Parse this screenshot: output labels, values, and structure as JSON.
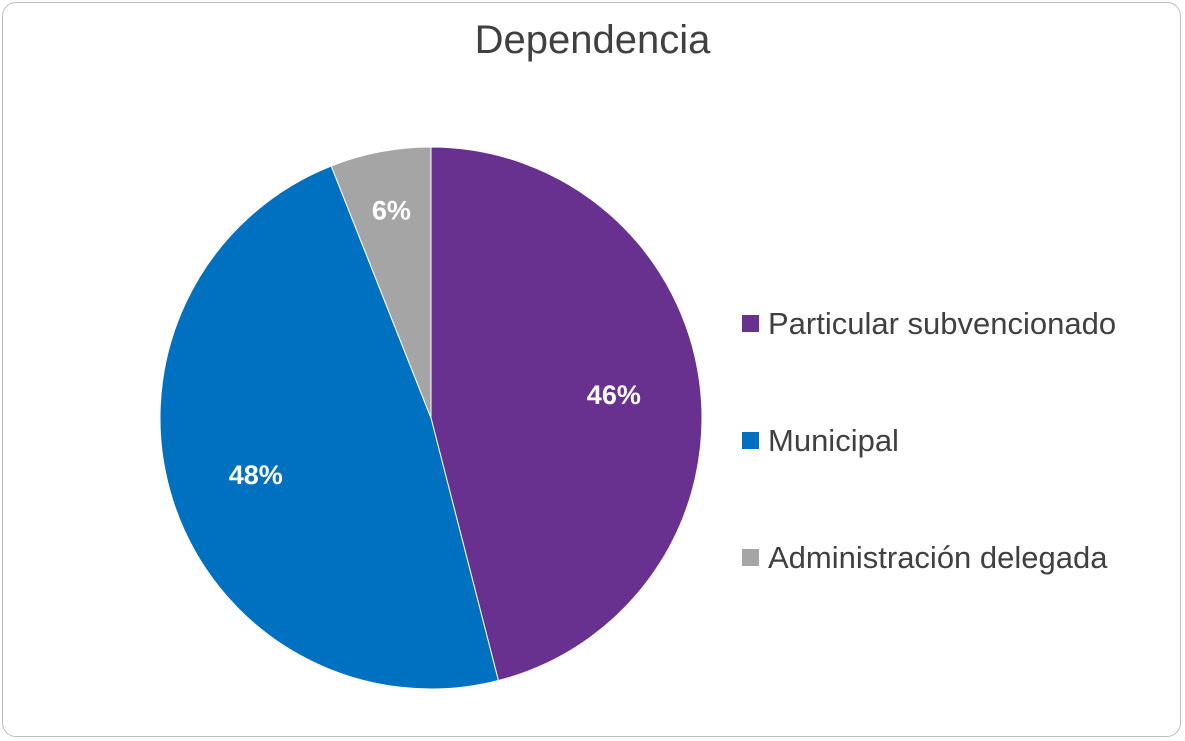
{
  "chart_data": {
    "type": "pie",
    "title": "Dependencia",
    "categories": [
      "Particular subvencionado",
      "Municipal",
      "Administración delegada"
    ],
    "values": [
      46,
      48,
      6
    ],
    "data_labels": [
      "46%",
      "48%",
      "6%"
    ],
    "colors": [
      "#68308f",
      "#0070c0",
      "#a5a5a5"
    ],
    "legend_position": "right",
    "start_angle": "top, clockwise"
  }
}
